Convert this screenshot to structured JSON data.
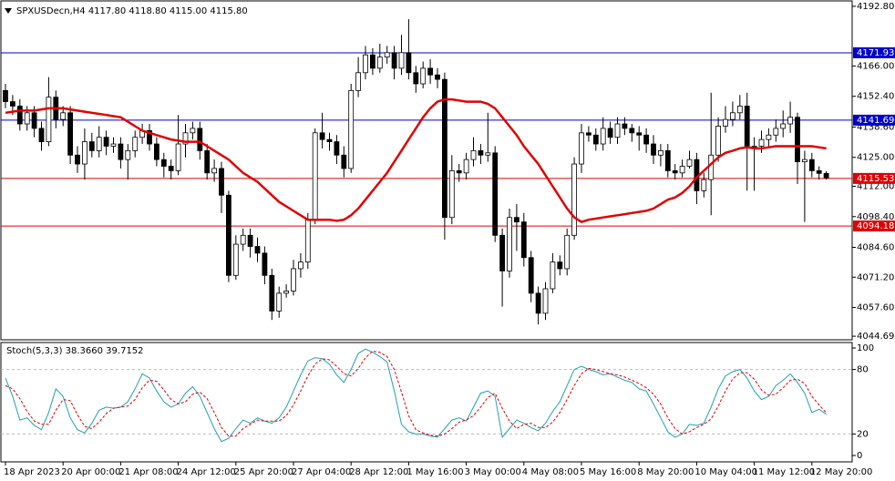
{
  "chart_data": [
    {
      "type": "candlestick",
      "title": "SPXUSDecn,H4  4117.80 4118.80 4115.00 4115.80",
      "categories": [
        "18 Apr 2023",
        null,
        null,
        null,
        null,
        null,
        null,
        null,
        "20 Apr 00:00",
        null,
        null,
        null,
        null,
        null,
        null,
        null,
        "21 Apr 08:00",
        null,
        null,
        null,
        null,
        null,
        null,
        null,
        "24 Apr 12:00",
        null,
        null,
        null,
        null,
        null,
        null,
        null,
        "25 Apr 20:00",
        null,
        null,
        null,
        null,
        null,
        null,
        null,
        "27 Apr 04:00",
        null,
        null,
        null,
        null,
        null,
        null,
        null,
        "28 Apr 12:00",
        null,
        null,
        null,
        null,
        null,
        null,
        null,
        "1 May 16:00",
        null,
        null,
        null,
        null,
        null,
        null,
        null,
        "3 May 00:00",
        null,
        null,
        null,
        null,
        null,
        null,
        null,
        "4 May 08:00",
        null,
        null,
        null,
        null,
        null,
        null,
        null,
        "5 May 16:00",
        null,
        null,
        null,
        null,
        null,
        null,
        null,
        "8 May 20:00",
        null,
        null,
        null,
        null,
        null,
        null,
        null,
        "10 May 04:00",
        null,
        null,
        null,
        null,
        null,
        null,
        null,
        "11 May 12:00",
        null,
        null,
        null,
        null,
        null,
        null,
        null,
        "12 May 20:00",
        null,
        null
      ],
      "open": [
        4155,
        4150,
        4148,
        4140,
        4145,
        4138,
        4132,
        4152,
        4142,
        4145,
        4126,
        4122,
        4132,
        4128,
        4134,
        4130,
        4131,
        4124,
        4128,
        4134,
        4137,
        4131,
        4124,
        4121,
        4119,
        4131,
        4136,
        4138,
        4128,
        4118,
        4120,
        4108,
        4072,
        4086,
        4090,
        4085,
        4082,
        4072,
        4056,
        4064,
        4065,
        4075,
        4078,
        4097,
        4136,
        4133,
        4132,
        4126,
        4120,
        4155,
        4163,
        4171,
        4165,
        4170,
        4172,
        4165,
        4172,
        4163,
        4158,
        4165,
        4162,
        4160,
        4098,
        4119,
        4118,
        4124,
        4128,
        4126,
        4127,
        4090,
        4074,
        4098,
        4096,
        4080,
        4064,
        4055,
        4066,
        4078,
        4075,
        4090,
        4122,
        4136,
        4135,
        4131,
        4138,
        4134,
        4140,
        4138,
        4136,
        4135,
        4131,
        4126,
        4128,
        4119,
        4118,
        4121,
        4124,
        4110,
        4115,
        4126,
        4139,
        4142,
        4145,
        4148,
        4130,
        4130,
        4133,
        4135,
        4138,
        4140,
        4143,
        4123,
        4124,
        4119,
        4117.8
      ],
      "high": [
        4158,
        4153,
        4151,
        4148,
        4148,
        4141,
        4161,
        4155,
        4148,
        4148,
        4130,
        4138,
        4136,
        4139,
        4137,
        4134,
        4134,
        4131,
        4137,
        4140,
        4140,
        4134,
        4127,
        4124,
        4144,
        4140,
        4141,
        4141,
        4131,
        4124,
        4123,
        4110,
        4090,
        4093,
        4093,
        4089,
        4085,
        4075,
        4067,
        4068,
        4079,
        4082,
        4100,
        4138,
        4145,
        4136,
        4135,
        4130,
        4158,
        4170,
        4175,
        4174,
        4176,
        4175,
        4175,
        4180,
        4187,
        4166,
        4168,
        4169,
        4165,
        4163,
        4126,
        4122,
        4127,
        4134,
        4131,
        4145,
        4130,
        4093,
        4102,
        4104,
        4100,
        4083,
        4067,
        4069,
        4082,
        4081,
        4093,
        4125,
        4140,
        4139,
        4138,
        4143,
        4141,
        4143,
        4143,
        4140,
        4139,
        4138,
        4135,
        4131,
        4131,
        4122,
        4124,
        4128,
        4127,
        4118,
        4154,
        4143,
        4148,
        4150,
        4153,
        4154,
        4134,
        4137,
        4138,
        4142,
        4146,
        4150,
        4145,
        4128,
        4127,
        4121,
        4118.8
      ],
      "low": [
        4147,
        4144,
        4137,
        4137,
        4134,
        4128,
        4130,
        4138,
        4139,
        4122,
        4118,
        4115,
        4125,
        4125,
        4126,
        4127,
        4120,
        4115,
        4125,
        4131,
        4128,
        4121,
        4116,
        4115,
        4117,
        4125,
        4133,
        4124,
        4115,
        4114,
        4100,
        4069,
        4070,
        4083,
        4080,
        4078,
        4068,
        4052,
        4053,
        4062,
        4063,
        4071,
        4075,
        4095,
        4129,
        4128,
        4122,
        4116,
        4118,
        4152,
        4160,
        4162,
        4163,
        4167,
        4160,
        4162,
        4160,
        4154,
        4156,
        4158,
        4156,
        4088,
        4095,
        4114,
        4115,
        4121,
        4122,
        4123,
        4087,
        4058,
        4071,
        4083,
        4076,
        4060,
        4050,
        4052,
        4064,
        4072,
        4072,
        4088,
        4118,
        4132,
        4128,
        4128,
        4131,
        4131,
        4135,
        4132,
        4128,
        4127,
        4122,
        4121,
        4116,
        4115,
        4116,
        4120,
        4104,
        4107,
        4099,
        4123,
        4136,
        4139,
        4142,
        4110,
        4110,
        4127,
        4130,
        4132,
        4134,
        4136,
        4113,
        4096,
        4116,
        4115,
        4115.0
      ],
      "close": [
        4150,
        4148,
        4140,
        4145,
        4138,
        4132,
        4152,
        4142,
        4145,
        4126,
        4122,
        4132,
        4128,
        4134,
        4130,
        4131,
        4124,
        4128,
        4134,
        4137,
        4131,
        4124,
        4121,
        4119,
        4131,
        4136,
        4138,
        4128,
        4118,
        4120,
        4108,
        4072,
        4086,
        4090,
        4085,
        4082,
        4072,
        4056,
        4064,
        4065,
        4075,
        4078,
        4097,
        4136,
        4133,
        4132,
        4126,
        4120,
        4155,
        4163,
        4171,
        4165,
        4170,
        4172,
        4165,
        4172,
        4163,
        4158,
        4165,
        4162,
        4160,
        4098,
        4119,
        4118,
        4124,
        4128,
        4126,
        4127,
        4090,
        4074,
        4098,
        4096,
        4080,
        4064,
        4055,
        4066,
        4078,
        4075,
        4090,
        4122,
        4136,
        4135,
        4131,
        4138,
        4134,
        4140,
        4138,
        4136,
        4135,
        4131,
        4126,
        4128,
        4119,
        4118,
        4121,
        4124,
        4110,
        4115,
        4126,
        4139,
        4142,
        4145,
        4148,
        4130,
        4130,
        4133,
        4135,
        4138,
        4140,
        4143,
        4123,
        4124,
        4119,
        4117.8,
        4115.8
      ],
      "ma": {
        "color": "#e00000",
        "values": [
          4145,
          4145.5,
          4146,
          4146,
          4146,
          4146.5,
          4147,
          4147,
          4147,
          4146.5,
          4146,
          4145.5,
          4145,
          4144.5,
          4144,
          4143.5,
          4143,
          4141,
          4139,
          4137,
          4136,
          4135,
          4134,
          4133,
          4132.5,
          4132,
          4132,
          4132,
          4130,
          4128,
          4126,
          4124,
          4121,
          4118,
          4116,
          4114,
          4111,
          4108,
          4105,
          4103,
          4101,
          4099,
          4097,
          4097,
          4097,
          4097,
          4096.5,
          4097,
          4099,
          4102,
          4106,
          4110,
          4114,
          4118,
          4123,
          4128,
          4133,
          4138,
          4143,
          4147,
          4150,
          4151,
          4151,
          4150.5,
          4150,
          4150,
          4150,
          4149,
          4147,
          4143,
          4139,
          4135,
          4130,
          4126,
          4122,
          4117,
          4112,
          4107,
          4102,
          4098,
          4096,
          4097,
          4097.5,
          4098,
          4098.5,
          4099,
          4099.5,
          4100,
          4100.5,
          4101,
          4102,
          4104,
          4106,
          4107,
          4109,
          4112,
          4116,
          4119,
          4122,
          4125,
          4127,
          4128,
          4129,
          4129.5,
          4129,
          4129,
          4129.5,
          4130,
          4130,
          4130,
          4130,
          4130,
          4130,
          4129.5,
          4129
        ]
      },
      "levels": [
        {
          "value": 4171.93,
          "label": "4171.93",
          "color": "#0000cc"
        },
        {
          "value": 4141.69,
          "label": "4141.69",
          "color": "#0000cc"
        },
        {
          "value": 4115.53,
          "label": "4115.53",
          "color": "#e00000"
        },
        {
          "value": 4094.18,
          "label": "4094.18",
          "color": "#e00000"
        }
      ],
      "ylim": [
        4043.5,
        4194.4
      ],
      "yticks": [
        {
          "value": 4192.8,
          "label": "4192.80"
        },
        {
          "value": 4166,
          "label": "4166.00"
        },
        {
          "value": 4152.4,
          "label": "4152.40"
        },
        {
          "value": 4138.6,
          "label": "4138.60"
        },
        {
          "value": 4125,
          "label": "4125.00"
        },
        {
          "value": 4112,
          "label": "4112.00"
        },
        {
          "value": 4098.4,
          "label": "4098.40"
        },
        {
          "value": 4084.6,
          "label": "4084.60"
        },
        {
          "value": 4071.2,
          "label": "4071.20"
        },
        {
          "value": 4057.6,
          "label": "4057.60"
        },
        {
          "value": 4044.69,
          "label": "4044.69"
        }
      ]
    },
    {
      "type": "line",
      "title": "Stoch(5,3,3) 38.3660 39.7152",
      "series": [
        {
          "color": "#20a0b0",
          "values": [
            72,
            55,
            33,
            35,
            28,
            24,
            40,
            62,
            55,
            35,
            24,
            21,
            30,
            42,
            45,
            44,
            45,
            50,
            62,
            76,
            72,
            60,
            50,
            45,
            48,
            58,
            64,
            55,
            40,
            25,
            13,
            16,
            25,
            33,
            30,
            35,
            32,
            30,
            35,
            45,
            60,
            75,
            88,
            91,
            90,
            85,
            75,
            68,
            80,
            95,
            99,
            96,
            92,
            87,
            60,
            29,
            22,
            20,
            20,
            18,
            17,
            25,
            33,
            35,
            32,
            45,
            58,
            60,
            55,
            17,
            25,
            33,
            30,
            26,
            23,
            30,
            41,
            50,
            65,
            80,
            83,
            80,
            78,
            75,
            76,
            73,
            70,
            68,
            62,
            60,
            48,
            35,
            22,
            17,
            20,
            29,
            28,
            30,
            45,
            62,
            74,
            78,
            80,
            72,
            60,
            52,
            55,
            65,
            70,
            76,
            68,
            58,
            40,
            43,
            38.366
          ]
        },
        {
          "color": "#e00000",
          "dash": true,
          "values": [
            65,
            62,
            53,
            41,
            32,
            29,
            29,
            42,
            52,
            51,
            38,
            27,
            25,
            31,
            39,
            44,
            45,
            46,
            52,
            63,
            70,
            69,
            61,
            52,
            48,
            50,
            57,
            59,
            53,
            40,
            26,
            18,
            18,
            25,
            29,
            33,
            32,
            32,
            32,
            37,
            47,
            60,
            74,
            85,
            90,
            89,
            83,
            76,
            74,
            81,
            91,
            97,
            96,
            92,
            80,
            59,
            37,
            24,
            21,
            19,
            18,
            20,
            25,
            31,
            33,
            37,
            45,
            54,
            58,
            44,
            32,
            25,
            29,
            30,
            26,
            26,
            31,
            40,
            52,
            65,
            76,
            81,
            80,
            78,
            76,
            75,
            73,
            70,
            67,
            63,
            57,
            48,
            35,
            25,
            20,
            22,
            26,
            29,
            34,
            46,
            60,
            71,
            77,
            77,
            71,
            61,
            56,
            57,
            63,
            70,
            71,
            67,
            55,
            47,
            39.7152
          ]
        }
      ],
      "ylim": [
        0,
        100
      ],
      "yticks": [
        0,
        20,
        80,
        100
      ],
      "grid": true
    }
  ]
}
